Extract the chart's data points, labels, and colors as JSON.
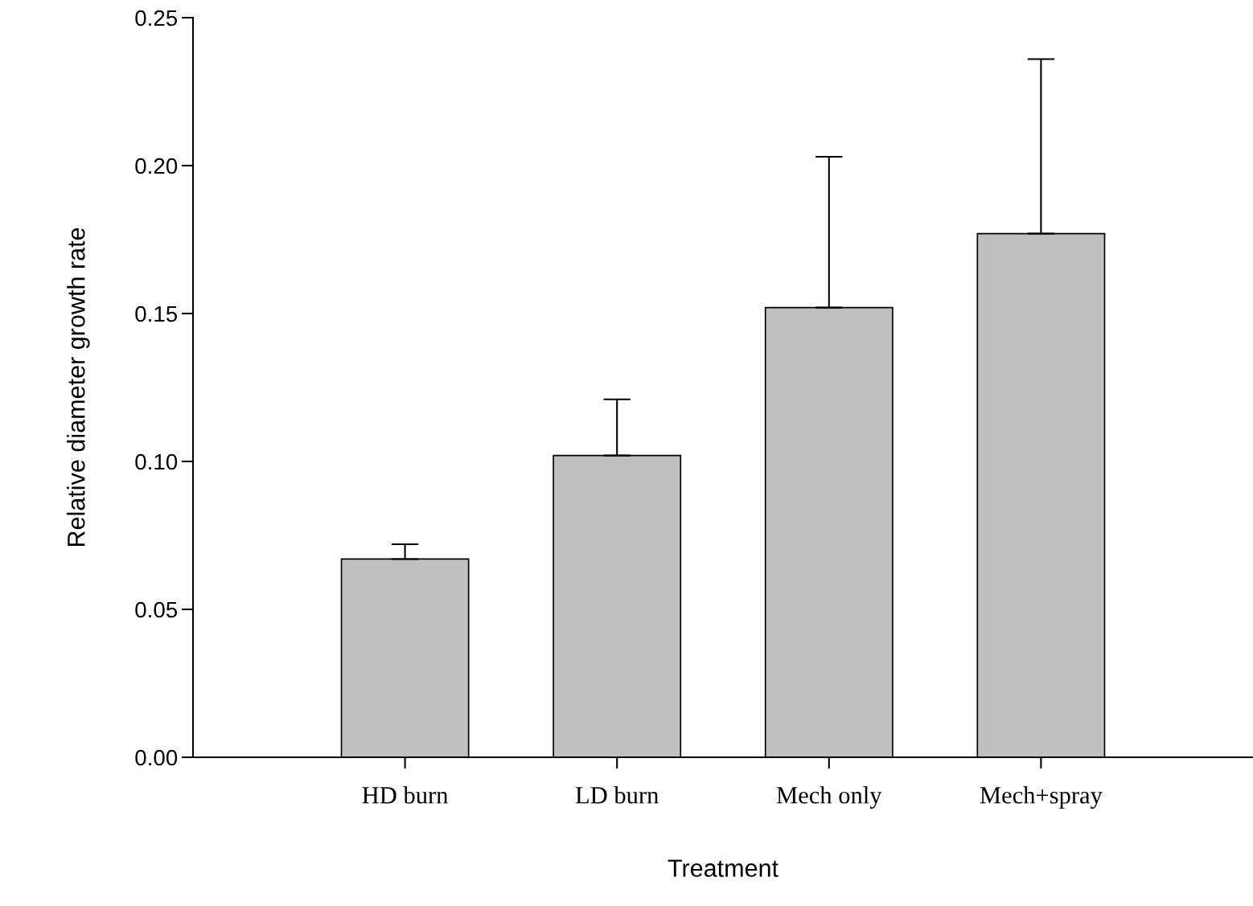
{
  "chart_data": {
    "type": "bar",
    "xlabel": "Treatment",
    "ylabel": "Relative diameter growth rate",
    "categories": [
      "HD burn",
      "LD burn",
      "Mech only",
      "Mech+spray"
    ],
    "values": [
      0.067,
      0.102,
      0.152,
      0.177
    ],
    "errors": [
      [
        0.067,
        0.072
      ],
      [
        0.102,
        0.121
      ],
      [
        0.152,
        0.203
      ],
      [
        0.177,
        0.236
      ]
    ],
    "color": "#c0c0c0",
    "ylim": [
      0,
      0.25
    ],
    "yticks": [
      {
        "value": 0,
        "label": "0.00"
      },
      {
        "value": 0.05,
        "label": "0.05"
      },
      {
        "value": 0.1,
        "label": "0.10"
      },
      {
        "value": 0.15,
        "label": "0.15"
      },
      {
        "value": 0.2,
        "label": "0.20"
      },
      {
        "value": 0.25,
        "label": "0.25"
      }
    ],
    "grid": false,
    "legend": false
  }
}
